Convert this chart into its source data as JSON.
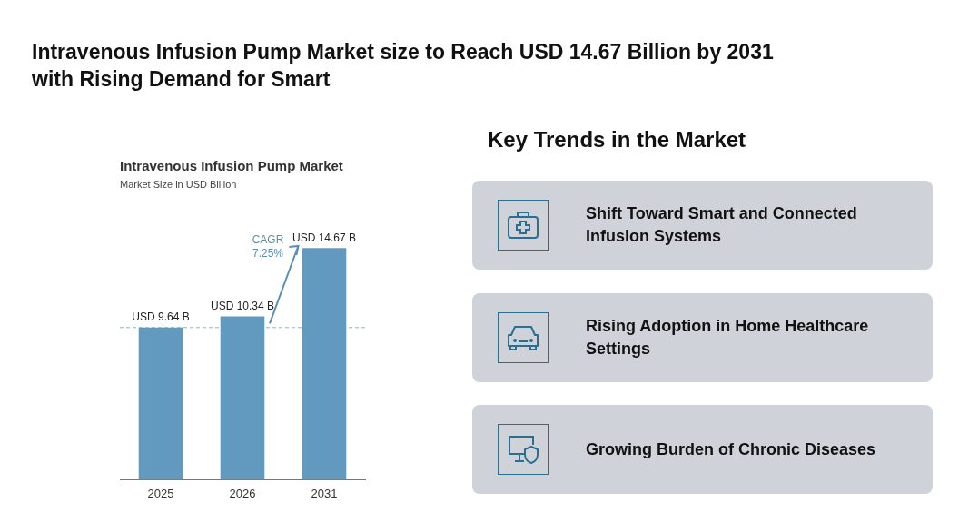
{
  "chart_data": [
    {
      "type": "bar",
      "title": "Intravenous Infusion Pump Market",
      "subtitle": "Market Size in USD Billion",
      "categories": [
        "2025",
        "2026",
        "2031"
      ],
      "values": [
        9.64,
        10.34,
        14.67
      ],
      "color": "#6199bf",
      "value_labels": [
        "USD 9.64 B",
        "USD 10.34 B",
        "USD 14.67 B"
      ],
      "ref_lines": [
        {
          "axis": "y",
          "value": 9.64,
          "color": "#8fb3c8",
          "line_style": "dashed"
        }
      ],
      "annotations": [
        "Intravenous Infusion Pump Market size to Reach USD 14.67 Billion by 2031 with Rising Demand for Smart",
        "CAGR 7.25%"
      ],
      "grid": false,
      "legend": false
    },
    {
      "type": "other",
      "title": "Key Trends in the Market",
      "annotations": [
        "Shift Toward Smart and Connected Infusion Systems",
        "Rising Adoption in Home Healthcare Settings",
        "Growing Burden of Chronic Diseases"
      ]
    }
  ]
}
